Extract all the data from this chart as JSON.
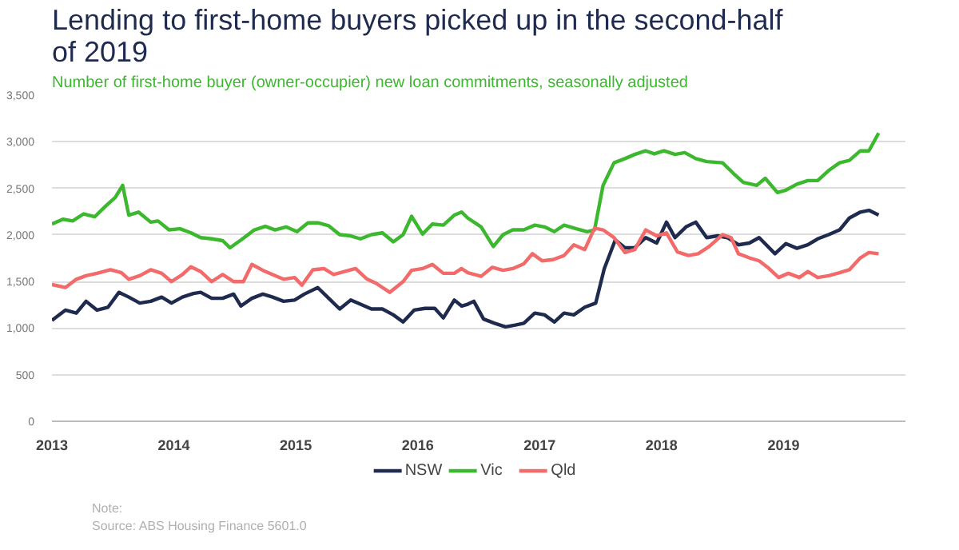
{
  "chart_data": {
    "type": "line",
    "title": "Lending to first-home buyers picked up in the second-half of 2019",
    "subtitle": "Number of first-home buyer (owner-occupier) new loan commitments, seasonally adjusted",
    "annotations": [
      "Note:",
      "Source: ABS Housing Finance 5601.0"
    ],
    "xlim": [
      2013,
      2020
    ],
    "xticks": [
      2013,
      2014,
      2015,
      2016,
      2017,
      2018,
      2019
    ],
    "ylim": [
      0,
      3500
    ],
    "yticks": [
      0,
      500,
      {
        "value": 1000,
        "label": "1,000"
      },
      {
        "value": 1500,
        "label": "1,500"
      },
      {
        "value": 2000,
        "label": "2,000"
      },
      {
        "value": 2500,
        "label": "2,500"
      },
      {
        "value": 3000,
        "label": "3,000"
      },
      {
        "value": 3500,
        "label": "3,500"
      }
    ],
    "grid": "y",
    "legend": "bottom",
    "marker": "none",
    "line_style": "solid",
    "series": [
      {
        "name": "NSW",
        "color": "#1f2a4f",
        "x": [
          2013.0,
          2013.11,
          2013.2,
          2013.28,
          2013.37,
          2013.46,
          2013.55,
          2013.63,
          2013.72,
          2013.81,
          2013.9,
          2013.98,
          2014.07,
          2014.16,
          2014.22,
          2014.31,
          2014.4,
          2014.49,
          2014.55,
          2014.64,
          2014.73,
          2014.81,
          2014.9,
          2014.99,
          2015.07,
          2015.18,
          2015.27,
          2015.36,
          2015.45,
          2015.53,
          2015.62,
          2015.71,
          2015.8,
          2015.88,
          2015.97,
          2016.06,
          2016.14,
          2016.21,
          2016.3,
          2016.36,
          2016.41,
          2016.46,
          2016.54,
          2016.63,
          2016.72,
          2016.8,
          2016.87,
          2016.96,
          2017.04,
          2017.12,
          2017.2,
          2017.28,
          2017.37,
          2017.46,
          2017.53,
          2017.62,
          2017.7,
          2017.78,
          2017.87,
          2017.96,
          2018.04,
          2018.11,
          2018.2,
          2018.28,
          2018.37,
          2018.46,
          2018.54,
          2018.63,
          2018.72,
          2018.8,
          2018.93,
          2019.02,
          2019.11,
          2019.2,
          2019.28,
          2019.37,
          2019.46,
          2019.54,
          2019.63,
          2019.7,
          2019.78
        ],
        "values": [
          1084,
          1193,
          1161,
          1288,
          1193,
          1224,
          1384,
          1333,
          1269,
          1288,
          1333,
          1269,
          1333,
          1371,
          1384,
          1320,
          1320,
          1365,
          1237,
          1320,
          1365,
          1333,
          1288,
          1301,
          1365,
          1435,
          1320,
          1205,
          1301,
          1256,
          1205,
          1205,
          1142,
          1065,
          1193,
          1212,
          1212,
          1110,
          1301,
          1237,
          1256,
          1288,
          1097,
          1052,
          1014,
          1033,
          1052,
          1161,
          1142,
          1065,
          1161,
          1142,
          1224,
          1269,
          1639,
          1945,
          1862,
          1862,
          1971,
          1913,
          2137,
          1971,
          2086,
          2137,
          1971,
          1990,
          1971,
          1894,
          1913,
          1971,
          1798,
          1907,
          1856,
          1894,
          1958,
          2003,
          2054,
          2181,
          2245,
          2264,
          2213
        ]
      },
      {
        "name": "Vic",
        "color": "#3cb82e",
        "x": [
          2013.0,
          2013.09,
          2013.17,
          2013.26,
          2013.35,
          2013.44,
          2013.52,
          2013.58,
          2013.63,
          2013.71,
          2013.81,
          2013.87,
          2013.96,
          2014.05,
          2014.14,
          2014.22,
          2014.31,
          2014.4,
          2014.46,
          2014.55,
          2014.66,
          2014.75,
          2014.83,
          2014.92,
          2015.01,
          2015.1,
          2015.18,
          2015.27,
          2015.36,
          2015.45,
          2015.53,
          2015.62,
          2015.71,
          2015.8,
          2015.88,
          2015.95,
          2016.04,
          2016.12,
          2016.21,
          2016.3,
          2016.36,
          2016.41,
          2016.52,
          2016.62,
          2016.7,
          2016.78,
          2016.87,
          2016.96,
          2017.04,
          2017.12,
          2017.2,
          2017.3,
          2017.39,
          2017.45,
          2017.52,
          2017.61,
          2017.7,
          2017.78,
          2017.87,
          2017.94,
          2018.02,
          2018.11,
          2018.19,
          2018.28,
          2018.37,
          2018.5,
          2018.59,
          2018.67,
          2018.78,
          2018.85,
          2018.95,
          2019.02,
          2019.11,
          2019.2,
          2019.28,
          2019.37,
          2019.46,
          2019.54,
          2019.63,
          2019.7,
          2019.78
        ],
        "values": [
          2117,
          2168,
          2150,
          2226,
          2194,
          2309,
          2404,
          2532,
          2213,
          2245,
          2137,
          2150,
          2054,
          2066,
          2022,
          1971,
          1958,
          1939,
          1862,
          1945,
          2054,
          2092,
          2054,
          2086,
          2035,
          2130,
          2130,
          2098,
          2003,
          1990,
          1958,
          2003,
          2022,
          1926,
          2003,
          2200,
          2009,
          2117,
          2105,
          2213,
          2245,
          2181,
          2086,
          1875,
          2003,
          2054,
          2054,
          2105,
          2086,
          2035,
          2105,
          2066,
          2035,
          2054,
          2532,
          2774,
          2819,
          2864,
          2902,
          2870,
          2902,
          2864,
          2883,
          2819,
          2787,
          2774,
          2659,
          2564,
          2532,
          2608,
          2455,
          2481,
          2545,
          2583,
          2583,
          2691,
          2774,
          2800,
          2902,
          2902,
          3093
        ]
      },
      {
        "name": "Qld",
        "color": "#f26a6a",
        "x": [
          2013.0,
          2013.11,
          2013.2,
          2013.28,
          2013.37,
          2013.48,
          2013.57,
          2013.63,
          2013.72,
          2013.81,
          2013.9,
          2013.98,
          2014.07,
          2014.14,
          2014.22,
          2014.31,
          2014.4,
          2014.49,
          2014.57,
          2014.64,
          2014.73,
          2014.81,
          2014.9,
          2014.99,
          2015.05,
          2015.14,
          2015.23,
          2015.31,
          2015.4,
          2015.49,
          2015.58,
          2015.66,
          2015.77,
          2015.88,
          2015.95,
          2016.04,
          2016.12,
          2016.21,
          2016.3,
          2016.36,
          2016.41,
          2016.52,
          2016.61,
          2016.7,
          2016.78,
          2016.87,
          2016.94,
          2017.02,
          2017.11,
          2017.2,
          2017.28,
          2017.37,
          2017.45,
          2017.52,
          2017.61,
          2017.7,
          2017.78,
          2017.87,
          2017.96,
          2018.04,
          2018.13,
          2018.22,
          2018.3,
          2018.39,
          2018.5,
          2018.57,
          2018.63,
          2018.72,
          2018.8,
          2018.87,
          2018.96,
          2019.04,
          2019.13,
          2019.2,
          2019.28,
          2019.37,
          2019.46,
          2019.54,
          2019.63,
          2019.7,
          2019.78
        ],
        "values": [
          1467,
          1435,
          1524,
          1562,
          1588,
          1626,
          1594,
          1524,
          1562,
          1626,
          1588,
          1499,
          1575,
          1658,
          1607,
          1499,
          1575,
          1499,
          1499,
          1684,
          1620,
          1575,
          1524,
          1543,
          1460,
          1626,
          1639,
          1575,
          1607,
          1639,
          1530,
          1480,
          1384,
          1499,
          1620,
          1639,
          1684,
          1588,
          1588,
          1639,
          1594,
          1556,
          1652,
          1620,
          1639,
          1690,
          1798,
          1722,
          1735,
          1779,
          1894,
          1843,
          2073,
          2054,
          1971,
          1811,
          1843,
          2054,
          1990,
          2022,
          1818,
          1779,
          1798,
          1875,
          2003,
          1971,
          1798,
          1754,
          1722,
          1652,
          1543,
          1588,
          1543,
          1607,
          1543,
          1562,
          1594,
          1626,
          1754,
          1811,
          1798
        ]
      }
    ]
  }
}
